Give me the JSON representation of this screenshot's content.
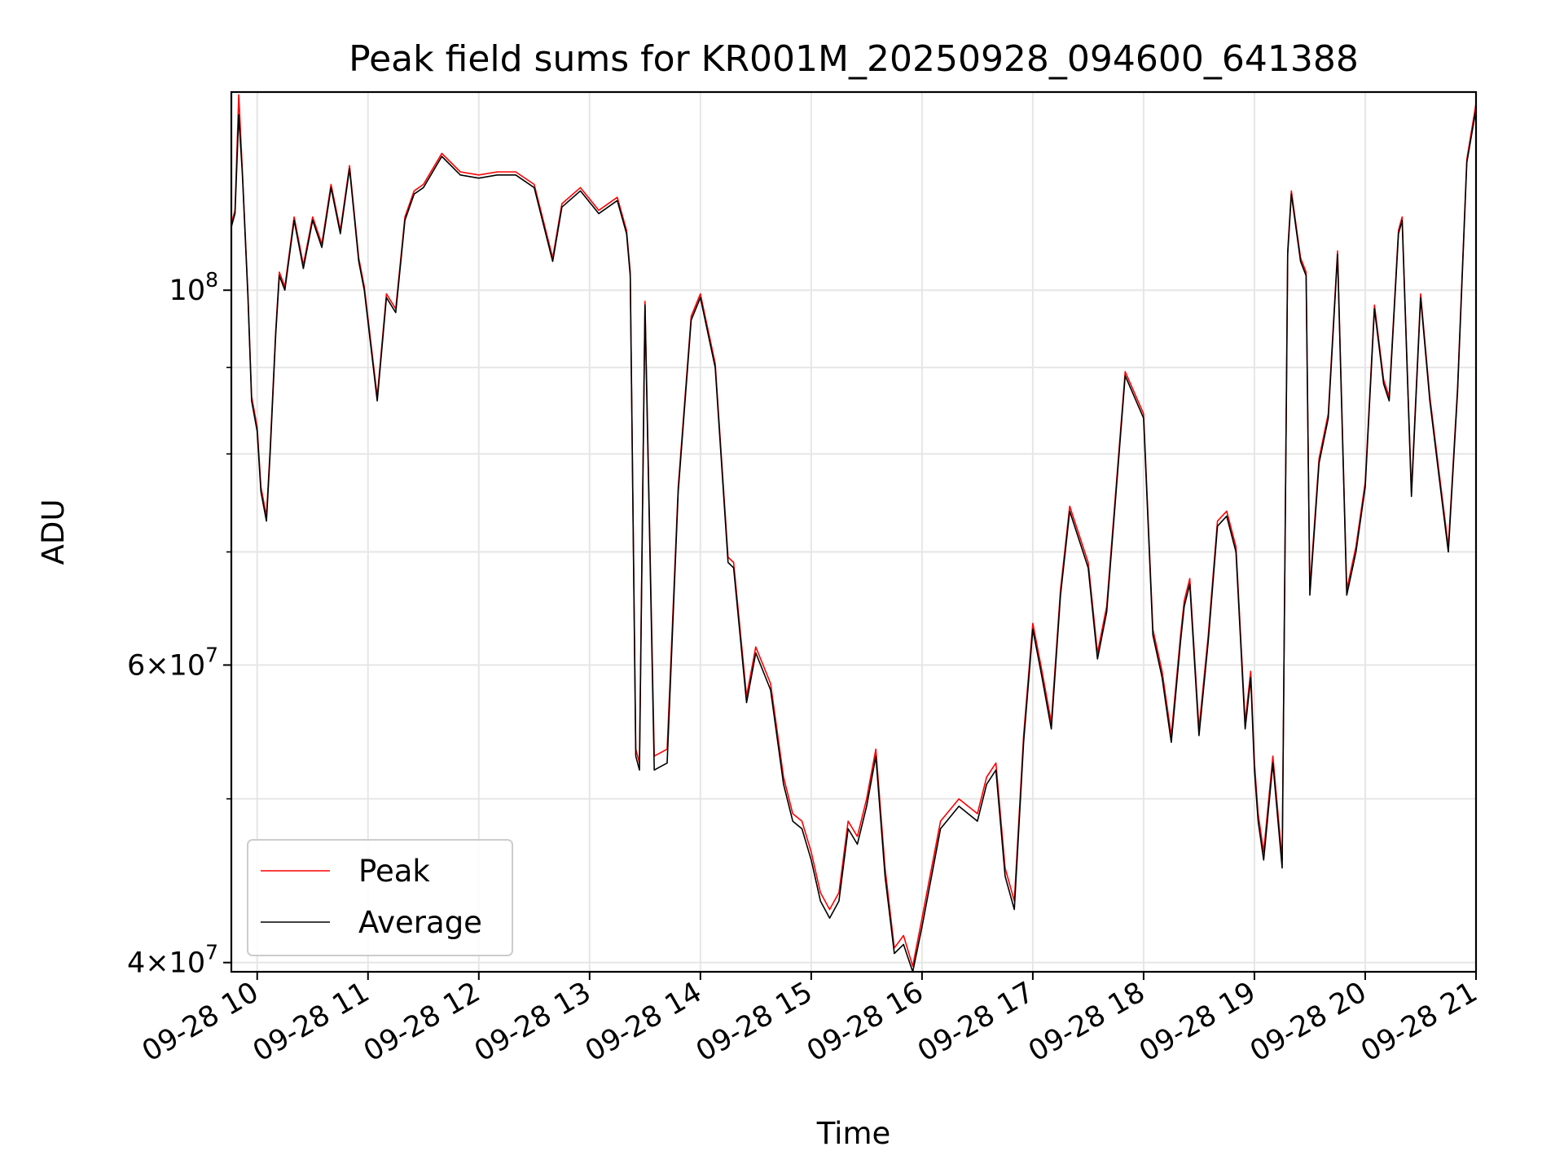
{
  "chart_data": {
    "type": "line",
    "title": "Peak field sums for KR001M_20250928_094600_641388",
    "xlabel": "Time",
    "ylabel": "ADU",
    "yscale": "log",
    "xlim": [
      "2025-09-28 09:46",
      "2025-09-28 21:00"
    ],
    "ylim": [
      39500000,
      131000000
    ],
    "grid": true,
    "legend_position": "lower-left",
    "x_ticks": [
      {
        "x": "2025-09-28 10:00",
        "label": "09-28 10"
      },
      {
        "x": "2025-09-28 11:00",
        "label": "09-28 11"
      },
      {
        "x": "2025-09-28 12:00",
        "label": "09-28 12"
      },
      {
        "x": "2025-09-28 13:00",
        "label": "09-28 13"
      },
      {
        "x": "2025-09-28 14:00",
        "label": "09-28 14"
      },
      {
        "x": "2025-09-28 15:00",
        "label": "09-28 15"
      },
      {
        "x": "2025-09-28 16:00",
        "label": "09-28 16"
      },
      {
        "x": "2025-09-28 17:00",
        "label": "09-28 17"
      },
      {
        "x": "2025-09-28 18:00",
        "label": "09-28 18"
      },
      {
        "x": "2025-09-28 19:00",
        "label": "09-28 19"
      },
      {
        "x": "2025-09-28 20:00",
        "label": "09-28 20"
      },
      {
        "x": "2025-09-28 21:00",
        "label": "09-28 21"
      }
    ],
    "y_major_ticks": [
      {
        "value": 40000000,
        "base": "4×10",
        "exp": "7"
      },
      {
        "value": 60000000,
        "base": "6×10",
        "exp": "7"
      },
      {
        "value": 100000000,
        "base": "10",
        "exp": "8"
      }
    ],
    "y_minor_ticks": [
      50000000,
      70000000,
      80000000,
      90000000
    ],
    "series": [
      {
        "name": "Peak",
        "color": "#ff0000"
      },
      {
        "name": "Average",
        "color": "#000000"
      }
    ],
    "x": [
      "2025-09-28 09:46",
      "2025-09-28 09:48",
      "2025-09-28 09:50",
      "2025-09-28 09:52",
      "2025-09-28 09:55",
      "2025-09-28 09:57",
      "2025-09-28 10:00",
      "2025-09-28 10:02",
      "2025-09-28 10:05",
      "2025-09-28 10:07",
      "2025-09-28 10:10",
      "2025-09-28 10:12",
      "2025-09-28 10:15",
      "2025-09-28 10:20",
      "2025-09-28 10:25",
      "2025-09-28 10:30",
      "2025-09-28 10:35",
      "2025-09-28 10:40",
      "2025-09-28 10:45",
      "2025-09-28 10:50",
      "2025-09-28 10:55",
      "2025-09-28 10:58",
      "2025-09-28 11:05",
      "2025-09-28 11:10",
      "2025-09-28 11:15",
      "2025-09-28 11:20",
      "2025-09-28 11:25",
      "2025-09-28 11:30",
      "2025-09-28 11:40",
      "2025-09-28 11:50",
      "2025-09-28 12:00",
      "2025-09-28 12:10",
      "2025-09-28 12:20",
      "2025-09-28 12:30",
      "2025-09-28 12:40",
      "2025-09-28 12:45",
      "2025-09-28 12:55",
      "2025-09-28 13:05",
      "2025-09-28 13:15",
      "2025-09-28 13:20",
      "2025-09-28 13:22",
      "2025-09-28 13:25",
      "2025-09-28 13:27",
      "2025-09-28 13:30",
      "2025-09-28 13:35",
      "2025-09-28 13:42",
      "2025-09-28 13:48",
      "2025-09-28 13:55",
      "2025-09-28 14:00",
      "2025-09-28 14:08",
      "2025-09-28 14:15",
      "2025-09-28 14:18",
      "2025-09-28 14:25",
      "2025-09-28 14:30",
      "2025-09-28 14:38",
      "2025-09-28 14:45",
      "2025-09-28 14:50",
      "2025-09-28 14:55",
      "2025-09-28 15:00",
      "2025-09-28 15:05",
      "2025-09-28 15:10",
      "2025-09-28 15:15",
      "2025-09-28 15:20",
      "2025-09-28 15:25",
      "2025-09-28 15:30",
      "2025-09-28 15:35",
      "2025-09-28 15:40",
      "2025-09-28 15:45",
      "2025-09-28 15:50",
      "2025-09-28 15:55",
      "2025-09-28 16:00",
      "2025-09-28 16:10",
      "2025-09-28 16:20",
      "2025-09-28 16:30",
      "2025-09-28 16:35",
      "2025-09-28 16:40",
      "2025-09-28 16:45",
      "2025-09-28 16:50",
      "2025-09-28 16:55",
      "2025-09-28 17:00",
      "2025-09-28 17:05",
      "2025-09-28 17:10",
      "2025-09-28 17:15",
      "2025-09-28 17:20",
      "2025-09-28 17:30",
      "2025-09-28 17:35",
      "2025-09-28 17:40",
      "2025-09-28 17:50",
      "2025-09-28 18:00",
      "2025-09-28 18:05",
      "2025-09-28 18:10",
      "2025-09-28 18:15",
      "2025-09-28 18:20",
      "2025-09-28 18:22",
      "2025-09-28 18:25",
      "2025-09-28 18:30",
      "2025-09-28 18:35",
      "2025-09-28 18:40",
      "2025-09-28 18:45",
      "2025-09-28 18:50",
      "2025-09-28 18:55",
      "2025-09-28 18:58",
      "2025-09-28 19:00",
      "2025-09-28 19:02",
      "2025-09-28 19:05",
      "2025-09-28 19:10",
      "2025-09-28 19:15",
      "2025-09-28 19:18",
      "2025-09-28 19:20",
      "2025-09-28 19:25",
      "2025-09-28 19:28",
      "2025-09-28 19:30",
      "2025-09-28 19:35",
      "2025-09-28 19:40",
      "2025-09-28 19:45",
      "2025-09-28 19:50",
      "2025-09-28 19:55",
      "2025-09-28 20:00",
      "2025-09-28 20:05",
      "2025-09-28 20:10",
      "2025-09-28 20:13",
      "2025-09-28 20:18",
      "2025-09-28 20:20",
      "2025-09-28 20:25",
      "2025-09-28 20:30",
      "2025-09-28 20:35",
      "2025-09-28 20:40",
      "2025-09-28 20:45",
      "2025-09-28 20:50",
      "2025-09-28 20:55",
      "2025-09-28 21:00"
    ],
    "average": [
      109000000,
      111000000,
      127000000,
      117000000,
      99000000,
      86000000,
      82500000,
      76000000,
      73000000,
      80000000,
      94000000,
      102000000,
      100000000,
      110000000,
      103000000,
      110000000,
      106000000,
      115000000,
      108000000,
      118000000,
      104000000,
      100000000,
      86000000,
      99000000,
      97000000,
      110000000,
      114000000,
      115000000,
      120000000,
      117000000,
      116500000,
      117000000,
      117000000,
      115000000,
      104000000,
      112000000,
      114500000,
      111000000,
      113000000,
      108000000,
      102000000,
      53000000,
      52000000,
      98000000,
      52000000,
      52500000,
      76000000,
      96000000,
      99000000,
      90000000,
      69000000,
      68500000,
      57000000,
      61000000,
      58000000,
      51000000,
      48500000,
      48000000,
      46000000,
      43500000,
      42500000,
      43500000,
      48000000,
      47000000,
      49500000,
      53000000,
      45000000,
      40500000,
      41000000,
      39500000,
      42000000,
      48000000,
      49500000,
      48500000,
      51000000,
      52000000,
      45000000,
      43000000,
      54000000,
      63000000,
      59000000,
      55000000,
      66000000,
      74000000,
      68500000,
      60500000,
      64500000,
      89000000,
      84000000,
      62500000,
      59000000,
      54000000,
      62000000,
      65000000,
      67000000,
      54500000,
      62000000,
      72500000,
      73500000,
      70000000,
      55000000,
      59000000,
      52000000,
      48500000,
      46000000,
      52500000,
      45500000,
      105000000,
      114000000,
      104000000,
      102000000,
      66000000,
      79000000,
      84000000,
      105000000,
      66000000,
      70000000,
      76500000,
      97500000,
      88000000,
      86000000,
      108000000,
      110000000,
      75500000,
      99000000,
      86000000,
      77500000,
      70000000,
      87000000,
      119000000,
      128000000
    ],
    "peak": [
      109500000,
      111500000,
      130500000,
      117500000,
      99500000,
      86500000,
      83000000,
      76500000,
      73500000,
      80500000,
      94500000,
      102500000,
      100500000,
      110500000,
      103500000,
      110500000,
      106500000,
      115500000,
      108500000,
      118500000,
      104500000,
      100500000,
      86500000,
      99500000,
      97500000,
      110500000,
      114500000,
      115500000,
      120500000,
      117500000,
      117000000,
      117500000,
      117500000,
      115500000,
      104500000,
      112500000,
      115000000,
      111500000,
      113500000,
      108500000,
      102500000,
      53500000,
      52500000,
      98500000,
      53000000,
      53500000,
      76500000,
      96500000,
      99500000,
      90500000,
      69500000,
      69000000,
      57500000,
      61500000,
      58500000,
      51500000,
      49000000,
      48500000,
      46500000,
      44000000,
      43000000,
      44000000,
      48500000,
      47500000,
      50000000,
      53500000,
      45500000,
      40800000,
      41500000,
      39800000,
      42500000,
      48500000,
      50000000,
      49000000,
      51500000,
      52500000,
      45500000,
      43500000,
      54500000,
      63500000,
      59500000,
      55500000,
      66500000,
      74500000,
      69000000,
      61000000,
      65000000,
      89500000,
      84500000,
      63000000,
      59500000,
      54500000,
      62500000,
      65500000,
      67500000,
      55000000,
      62500000,
      73000000,
      74000000,
      70500000,
      55500000,
      59500000,
      52500000,
      49000000,
      46500000,
      53000000,
      46000000,
      105500000,
      114500000,
      104500000,
      102500000,
      66500000,
      79500000,
      84500000,
      105500000,
      66500000,
      70500000,
      77000000,
      98000000,
      88500000,
      86500000,
      108500000,
      110500000,
      76000000,
      99500000,
      86500000,
      78000000,
      70500000,
      87500000,
      119500000,
      129000000
    ]
  }
}
